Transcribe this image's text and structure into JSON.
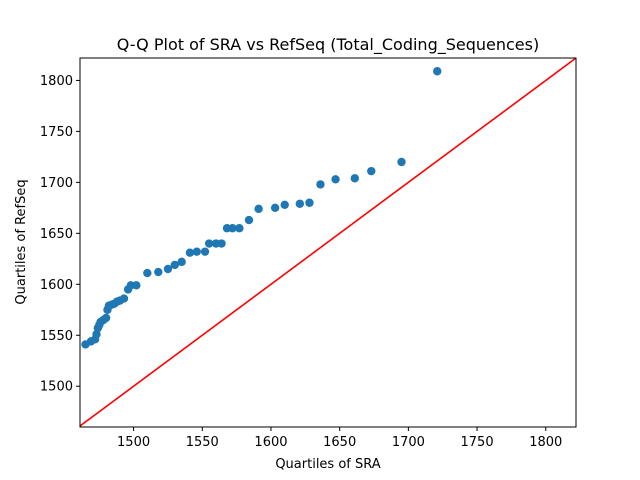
{
  "chart_data": {
    "type": "scatter",
    "title": "Q-Q Plot of SRA vs RefSeq (Total_Coding_Sequences)",
    "xlabel": "Quartiles of SRA",
    "ylabel": "Quartiles of RefSeq",
    "xlim": [
      1461,
      1822
    ],
    "ylim": [
      1460,
      1822
    ],
    "xticks": [
      1500,
      1550,
      1600,
      1650,
      1700,
      1750,
      1800
    ],
    "yticks": [
      1500,
      1550,
      1600,
      1650,
      1700,
      1750,
      1800
    ],
    "grid": false,
    "legend": "none",
    "point_color": "#1f77b4",
    "line_color": "#ff0000",
    "reference_line": [
      [
        1461,
        1461
      ],
      [
        1822,
        1822
      ]
    ],
    "points": [
      [
        1465,
        1541
      ],
      [
        1469,
        1544
      ],
      [
        1472,
        1546
      ],
      [
        1473,
        1551
      ],
      [
        1474,
        1557
      ],
      [
        1475,
        1560
      ],
      [
        1476,
        1563
      ],
      [
        1478,
        1565
      ],
      [
        1480,
        1567
      ],
      [
        1481,
        1575
      ],
      [
        1482,
        1579
      ],
      [
        1484,
        1580
      ],
      [
        1486,
        1581
      ],
      [
        1488,
        1583
      ],
      [
        1490,
        1584
      ],
      [
        1493,
        1586
      ],
      [
        1496,
        1595
      ],
      [
        1498,
        1599
      ],
      [
        1502,
        1599
      ],
      [
        1510,
        1611
      ],
      [
        1518,
        1612
      ],
      [
        1525,
        1615
      ],
      [
        1530,
        1619
      ],
      [
        1535,
        1622
      ],
      [
        1541,
        1631
      ],
      [
        1546,
        1632
      ],
      [
        1552,
        1632
      ],
      [
        1555,
        1640
      ],
      [
        1560,
        1640
      ],
      [
        1564,
        1640
      ],
      [
        1568,
        1655
      ],
      [
        1572,
        1655
      ],
      [
        1577,
        1655
      ],
      [
        1584,
        1663
      ],
      [
        1591,
        1674
      ],
      [
        1603,
        1675
      ],
      [
        1610,
        1678
      ],
      [
        1621,
        1679
      ],
      [
        1628,
        1680
      ],
      [
        1636,
        1698
      ],
      [
        1647,
        1703
      ],
      [
        1661,
        1704
      ],
      [
        1673,
        1711
      ],
      [
        1695,
        1720
      ],
      [
        1721,
        1809
      ]
    ]
  }
}
